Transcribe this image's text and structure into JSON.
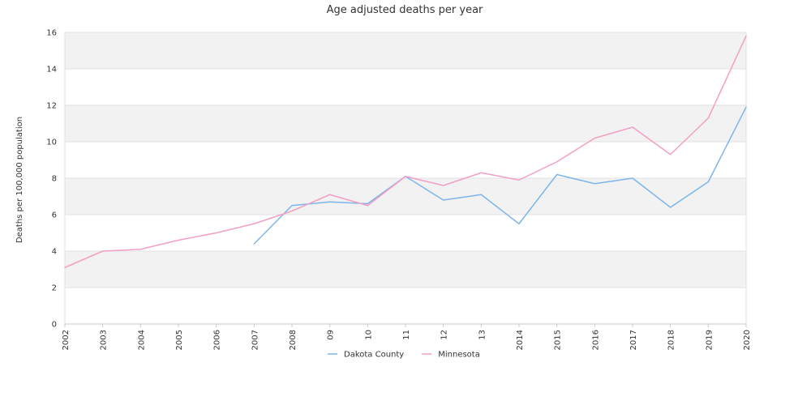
{
  "chart_data": {
    "type": "line",
    "title": "Age adjusted deaths per year",
    "xlabel": "",
    "ylabel": "Deaths per 100,000 population",
    "categories": [
      "2002",
      "2003",
      "2004",
      "2005",
      "2006",
      "2007",
      "2008",
      "09",
      "10",
      "11",
      "12",
      "13",
      "2014",
      "2015",
      "2016",
      "2017",
      "2018",
      "2019",
      "2020"
    ],
    "ylim": [
      0,
      16
    ],
    "yticks": [
      "0",
      "2",
      "4",
      "6",
      "8",
      "10",
      "12",
      "14",
      "16"
    ],
    "grid": true,
    "legend_position": "bottom",
    "series": [
      {
        "name": "Dakota County",
        "color": "#7cb5ec",
        "values": [
          null,
          null,
          null,
          null,
          null,
          4.4,
          6.5,
          6.7,
          6.6,
          8.1,
          6.8,
          7.1,
          5.5,
          8.2,
          7.7,
          8.0,
          6.4,
          7.8,
          11.9
        ]
      },
      {
        "name": "Minnesota",
        "color": "#f29fc5",
        "values": [
          3.1,
          4.0,
          4.1,
          4.6,
          5.0,
          5.5,
          6.2,
          7.1,
          6.5,
          8.1,
          7.6,
          8.3,
          7.9,
          8.9,
          10.2,
          10.8,
          9.3,
          11.3,
          15.8
        ]
      }
    ]
  }
}
